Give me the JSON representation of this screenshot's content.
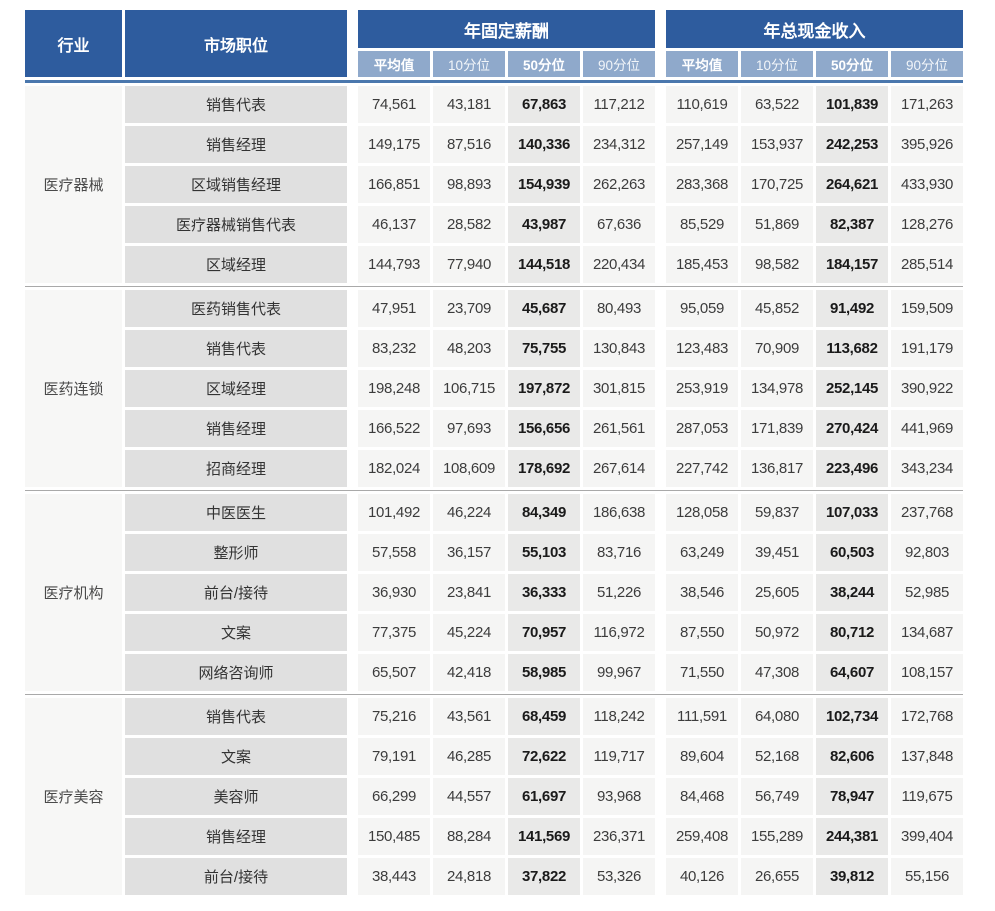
{
  "header": {
    "industry": "行业",
    "position": "市场职位",
    "fixed_group": "年固定薪酬",
    "total_group": "年总现金收入",
    "sub": [
      "平均值",
      "10分位",
      "50分位",
      "90分位"
    ]
  },
  "colors": {
    "header_dark_blue": "#2e5c9e",
    "header_sub_blue": "#8fa9cb",
    "header_rule_blue": "#4a77ad",
    "industry_cell_bg": "#f7f7f6",
    "position_cell_bg": "#e0e0e0",
    "value_cell_bg": "#f5f5f4",
    "p50_cell_bg": "#e9e9e8",
    "group_separator": "#a9a9a9"
  },
  "groups": [
    {
      "industry": "医疗器械",
      "rows": [
        {
          "position": "销售代表",
          "fixed": [
            "74,561",
            "43,181",
            "67,863",
            "117,212"
          ],
          "total": [
            "110,619",
            "63,522",
            "101,839",
            "171,263"
          ]
        },
        {
          "position": "销售经理",
          "fixed": [
            "149,175",
            "87,516",
            "140,336",
            "234,312"
          ],
          "total": [
            "257,149",
            "153,937",
            "242,253",
            "395,926"
          ]
        },
        {
          "position": "区域销售经理",
          "fixed": [
            "166,851",
            "98,893",
            "154,939",
            "262,263"
          ],
          "total": [
            "283,368",
            "170,725",
            "264,621",
            "433,930"
          ]
        },
        {
          "position": "医疗器械销售代表",
          "fixed": [
            "46,137",
            "28,582",
            "43,987",
            "67,636"
          ],
          "total": [
            "85,529",
            "51,869",
            "82,387",
            "128,276"
          ]
        },
        {
          "position": "区域经理",
          "fixed": [
            "144,793",
            "77,940",
            "144,518",
            "220,434"
          ],
          "total": [
            "185,453",
            "98,582",
            "184,157",
            "285,514"
          ]
        }
      ]
    },
    {
      "industry": "医药连锁",
      "rows": [
        {
          "position": "医药销售代表",
          "fixed": [
            "47,951",
            "23,709",
            "45,687",
            "80,493"
          ],
          "total": [
            "95,059",
            "45,852",
            "91,492",
            "159,509"
          ]
        },
        {
          "position": "销售代表",
          "fixed": [
            "83,232",
            "48,203",
            "75,755",
            "130,843"
          ],
          "total": [
            "123,483",
            "70,909",
            "113,682",
            "191,179"
          ]
        },
        {
          "position": "区域经理",
          "fixed": [
            "198,248",
            "106,715",
            "197,872",
            "301,815"
          ],
          "total": [
            "253,919",
            "134,978",
            "252,145",
            "390,922"
          ]
        },
        {
          "position": "销售经理",
          "fixed": [
            "166,522",
            "97,693",
            "156,656",
            "261,561"
          ],
          "total": [
            "287,053",
            "171,839",
            "270,424",
            "441,969"
          ]
        },
        {
          "position": "招商经理",
          "fixed": [
            "182,024",
            "108,609",
            "178,692",
            "267,614"
          ],
          "total": [
            "227,742",
            "136,817",
            "223,496",
            "343,234"
          ]
        }
      ]
    },
    {
      "industry": "医疗机构",
      "rows": [
        {
          "position": "中医医生",
          "fixed": [
            "101,492",
            "46,224",
            "84,349",
            "186,638"
          ],
          "total": [
            "128,058",
            "59,837",
            "107,033",
            "237,768"
          ]
        },
        {
          "position": "整形师",
          "fixed": [
            "57,558",
            "36,157",
            "55,103",
            "83,716"
          ],
          "total": [
            "63,249",
            "39,451",
            "60,503",
            "92,803"
          ]
        },
        {
          "position": "前台/接待",
          "fixed": [
            "36,930",
            "23,841",
            "36,333",
            "51,226"
          ],
          "total": [
            "38,546",
            "25,605",
            "38,244",
            "52,985"
          ]
        },
        {
          "position": "文案",
          "fixed": [
            "77,375",
            "45,224",
            "70,957",
            "116,972"
          ],
          "total": [
            "87,550",
            "50,972",
            "80,712",
            "134,687"
          ]
        },
        {
          "position": "网络咨询师",
          "fixed": [
            "65,507",
            "42,418",
            "58,985",
            "99,967"
          ],
          "total": [
            "71,550",
            "47,308",
            "64,607",
            "108,157"
          ]
        }
      ]
    },
    {
      "industry": "医疗美容",
      "rows": [
        {
          "position": "销售代表",
          "fixed": [
            "75,216",
            "43,561",
            "68,459",
            "118,242"
          ],
          "total": [
            "111,591",
            "64,080",
            "102,734",
            "172,768"
          ]
        },
        {
          "position": "文案",
          "fixed": [
            "79,191",
            "46,285",
            "72,622",
            "119,717"
          ],
          "total": [
            "89,604",
            "52,168",
            "82,606",
            "137,848"
          ]
        },
        {
          "position": "美容师",
          "fixed": [
            "66,299",
            "44,557",
            "61,697",
            "93,968"
          ],
          "total": [
            "84,468",
            "56,749",
            "78,947",
            "119,675"
          ]
        },
        {
          "position": "销售经理",
          "fixed": [
            "150,485",
            "88,284",
            "141,569",
            "236,371"
          ],
          "total": [
            "259,408",
            "155,289",
            "244,381",
            "399,404"
          ]
        },
        {
          "position": "前台/接待",
          "fixed": [
            "38,443",
            "24,818",
            "37,822",
            "53,326"
          ],
          "total": [
            "40,126",
            "26,655",
            "39,812",
            "55,156"
          ]
        }
      ]
    }
  ]
}
